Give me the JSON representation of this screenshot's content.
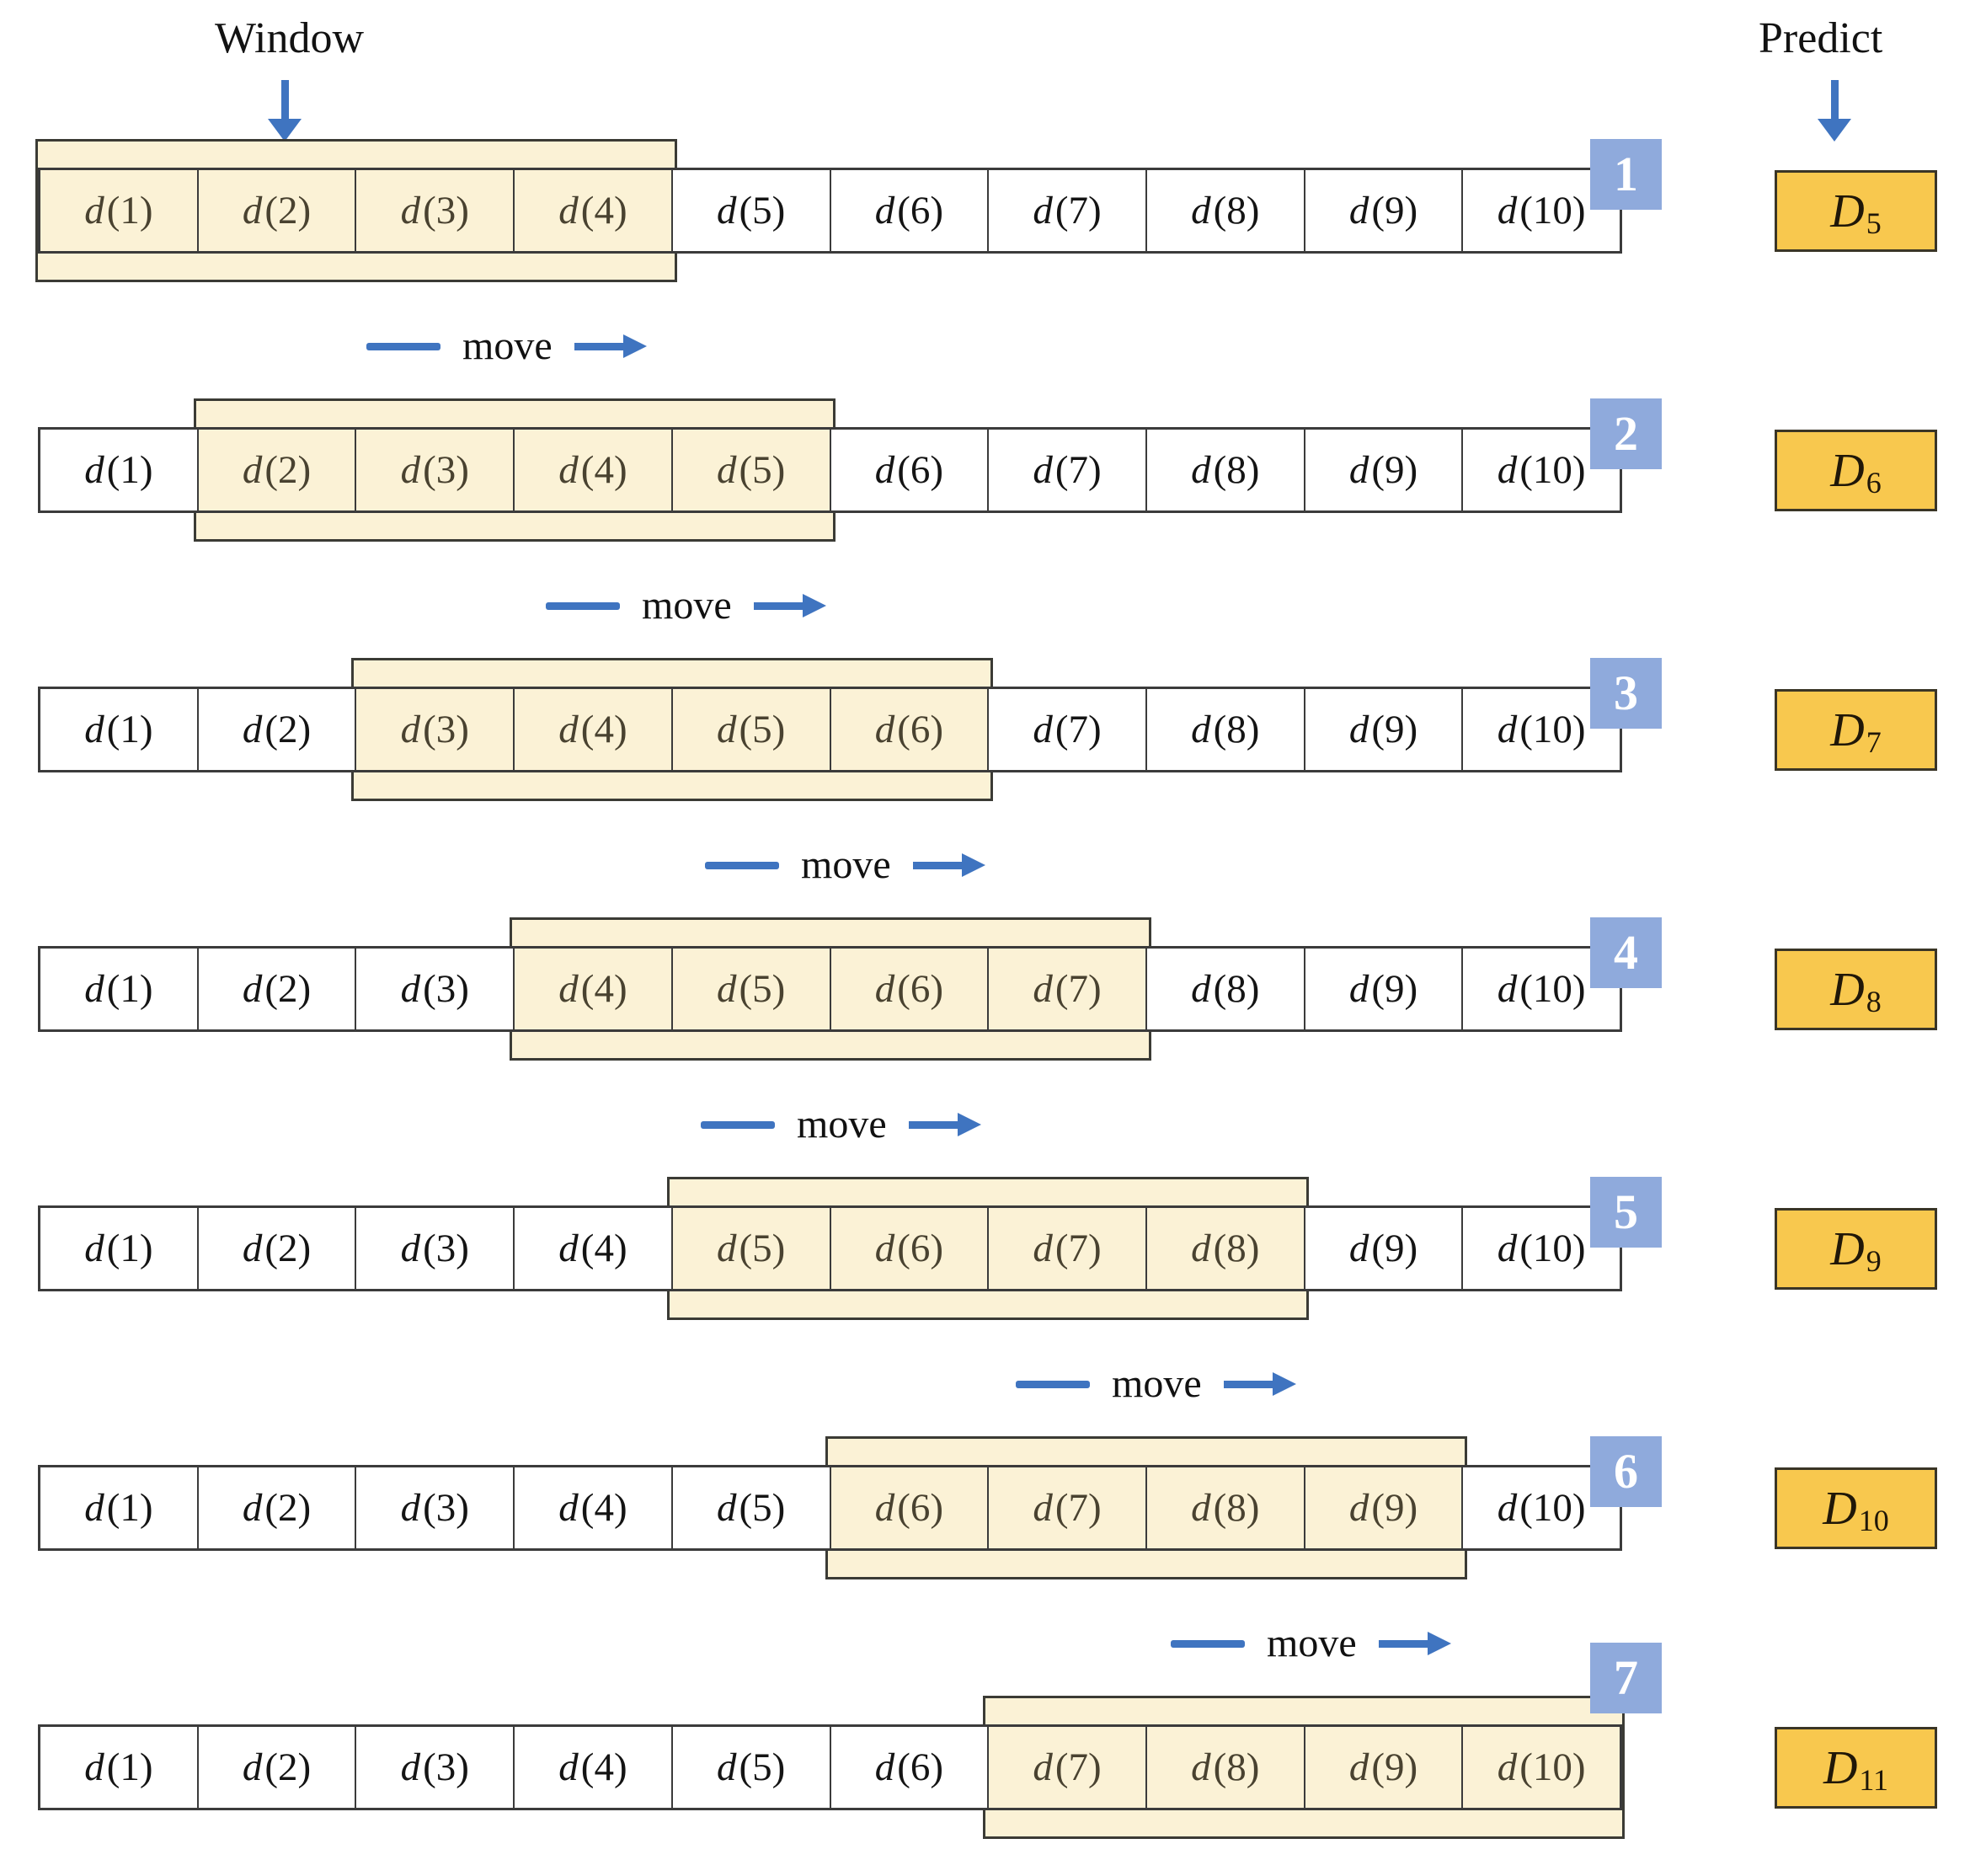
{
  "headers": {
    "window": "Window",
    "predict": "Predict"
  },
  "move": {
    "label": "move"
  },
  "cells": {
    "base": "d",
    "args": [
      "(1)",
      "(2)",
      "(3)",
      "(4)",
      "(5)",
      "(6)",
      "(7)",
      "(8)",
      "(9)",
      "(10)"
    ]
  },
  "rows": [
    {
      "badge": "1",
      "window_start": 1,
      "window_cells": [
        "d(1)",
        "d(2)",
        "d(3)",
        "d(4)"
      ],
      "predict": {
        "base": "D",
        "sub": "5"
      }
    },
    {
      "badge": "2",
      "window_start": 2,
      "window_cells": [
        "d(2)",
        "d(3)",
        "d(4)",
        "d(5)"
      ],
      "predict": {
        "base": "D",
        "sub": "6"
      }
    },
    {
      "badge": "3",
      "window_start": 3,
      "window_cells": [
        "d(3)",
        "d(4)",
        "d(5)",
        "d(6)"
      ],
      "predict": {
        "base": "D",
        "sub": "7"
      }
    },
    {
      "badge": "4",
      "window_start": 4,
      "window_cells": [
        "d(4)",
        "d(5)",
        "d(6)",
        "d(7)"
      ],
      "predict": {
        "base": "D",
        "sub": "8"
      }
    },
    {
      "badge": "5",
      "window_start": 5,
      "window_cells": [
        "d(5)",
        "d(6)",
        "d(7)",
        "d(8)"
      ],
      "predict": {
        "base": "D",
        "sub": "9"
      }
    },
    {
      "badge": "6",
      "window_start": 6,
      "window_cells": [
        "d(6)",
        "d(7)",
        "d(8)",
        "d(9)"
      ],
      "predict": {
        "base": "D",
        "sub": "10"
      }
    },
    {
      "badge": "7",
      "window_start": 7,
      "window_cells": [
        "d(7)",
        "d(8)",
        "d(9)",
        "d(10)"
      ],
      "predict": {
        "base": "D",
        "sub": "11"
      }
    }
  ],
  "colors": {
    "window_fill": "#FBF2D6",
    "predict_fill": "#F8C84E",
    "badge_fill": "#8FAADC",
    "arrow_blue": "#3F74C0",
    "border_dark": "#3b3b35"
  }
}
